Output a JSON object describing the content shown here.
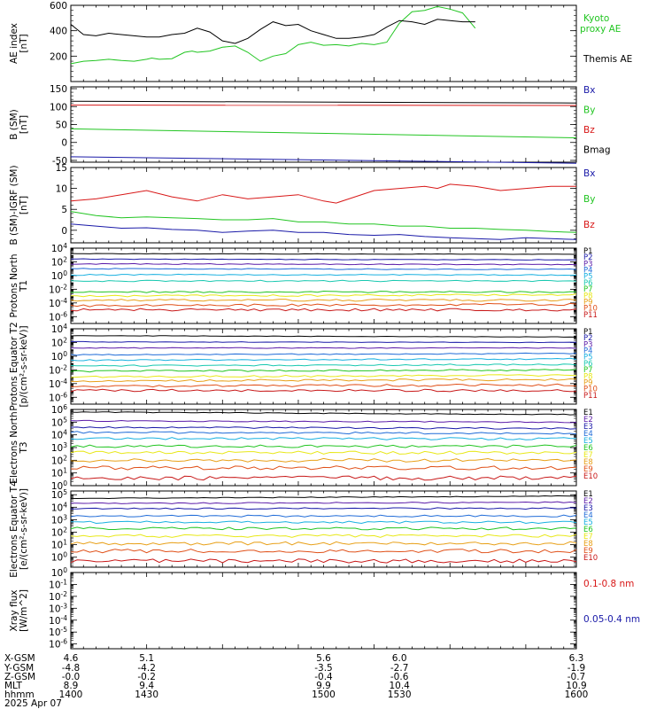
{
  "colors": {
    "black": "#000000",
    "blue": "#1a1aa8",
    "green": "#22c522",
    "red": "#d81818",
    "P": [
      "#000000",
      "#1a1aa8",
      "#5a1aa8",
      "#1f6bd8",
      "#18b0e0",
      "#18c8b0",
      "#22c522",
      "#e8e818",
      "#e8a018",
      "#e05018",
      "#c81818"
    ],
    "E": [
      "#000000",
      "#5a1aa8",
      "#1a1aa8",
      "#1f6bd8",
      "#18b0e0",
      "#22c522",
      "#e8e818",
      "#e8a018",
      "#e05018",
      "#c81818"
    ]
  },
  "chart_data": [
    {
      "type": "line",
      "ylabel": "AE index [nT]",
      "ylim": [
        0,
        600
      ],
      "yticks": [
        {
          "v": 600,
          "label": "600"
        },
        {
          "v": 400,
          "label": "400"
        },
        {
          "v": 200,
          "label": "200"
        }
      ],
      "legend_title": "",
      "series": [
        {
          "name": "Kyoto proxy AE",
          "color": "green",
          "x": [
            1400,
            1405,
            1410,
            1415,
            1420,
            1425,
            1430,
            1432,
            1435,
            1440,
            1445,
            1448,
            1450,
            1455,
            1460,
            1465,
            1470,
            1475,
            1480,
            1485,
            1490,
            1495,
            1500,
            1505,
            1510,
            1515,
            1520,
            1525,
            1530,
            1535,
            1540,
            1545,
            1550,
            1555,
            1560
          ],
          "y": [
            140,
            160,
            165,
            175,
            165,
            160,
            175,
            185,
            175,
            180,
            230,
            240,
            230,
            240,
            270,
            280,
            230,
            160,
            200,
            220,
            290,
            310,
            285,
            290,
            280,
            300,
            290,
            310,
            460,
            550,
            560,
            590,
            570,
            540,
            420
          ]
        },
        {
          "name": "Themis AE",
          "color": "black",
          "x": [
            1400,
            1405,
            1410,
            1415,
            1420,
            1425,
            1430,
            1435,
            1440,
            1445,
            1450,
            1455,
            1460,
            1465,
            1470,
            1475,
            1480,
            1485,
            1490,
            1495,
            1500,
            1505,
            1510,
            1515,
            1520,
            1525,
            1530,
            1535,
            1540,
            1545,
            1550,
            1555,
            1560
          ],
          "y": [
            450,
            370,
            360,
            380,
            370,
            360,
            350,
            350,
            370,
            380,
            420,
            390,
            320,
            300,
            340,
            410,
            470,
            440,
            450,
            400,
            370,
            340,
            340,
            350,
            370,
            430,
            480,
            470,
            450,
            490,
            480,
            470,
            470
          ]
        }
      ]
    },
    {
      "type": "line",
      "ylabel": "B (SM) [nT]",
      "ylim": [
        -55,
        155
      ],
      "yticks": [
        {
          "v": 150,
          "label": "150"
        },
        {
          "v": 100,
          "label": "100"
        },
        {
          "v": 50,
          "label": "50"
        },
        {
          "v": 0,
          "label": "0"
        },
        {
          "v": -50,
          "label": "-50"
        }
      ],
      "series": [
        {
          "name": "Bx",
          "color": "blue",
          "x": [
            1400,
            1600
          ],
          "y": [
            -40,
            -58
          ]
        },
        {
          "name": "By",
          "color": "green",
          "x": [
            1400,
            1600
          ],
          "y": [
            38,
            13
          ]
        },
        {
          "name": "Bz",
          "color": "red",
          "x": [
            1400,
            1600
          ],
          "y": [
            104,
            103
          ]
        },
        {
          "name": "Bmag",
          "color": "black",
          "x": [
            1400,
            1600
          ],
          "y": [
            115,
            110
          ]
        }
      ]
    },
    {
      "type": "line",
      "ylabel": "B (SM)-IGRF (SM) [nT]",
      "ylim": [
        -3,
        15
      ],
      "yticks": [
        {
          "v": 15,
          "label": "15"
        },
        {
          "v": 10,
          "label": "10"
        },
        {
          "v": 5,
          "label": "5"
        },
        {
          "v": 0,
          "label": "0"
        }
      ],
      "series": [
        {
          "name": "Bx",
          "color": "blue",
          "x": [
            1400,
            1410,
            1420,
            1430,
            1440,
            1450,
            1460,
            1470,
            1480,
            1490,
            1500,
            1510,
            1520,
            1530,
            1540,
            1550,
            1560,
            1570,
            1580,
            1590,
            1600
          ],
          "y": [
            1.5,
            1.0,
            0.5,
            0.6,
            0.2,
            0.0,
            -0.5,
            -0.2,
            0.0,
            -0.5,
            -0.5,
            -1.0,
            -1.2,
            -1.0,
            -1.5,
            -1.8,
            -2.0,
            -2.2,
            -1.8,
            -2.0,
            -2.2
          ]
        },
        {
          "name": "By",
          "color": "green",
          "x": [
            1400,
            1410,
            1420,
            1430,
            1440,
            1450,
            1460,
            1470,
            1480,
            1490,
            1500,
            1510,
            1520,
            1530,
            1540,
            1550,
            1560,
            1570,
            1580,
            1590,
            1600
          ],
          "y": [
            4.5,
            3.5,
            3.0,
            3.2,
            3.0,
            2.8,
            2.5,
            2.5,
            2.8,
            2.0,
            2.0,
            1.5,
            1.5,
            1.0,
            1.0,
            0.5,
            0.5,
            0.2,
            0.0,
            -0.3,
            -0.5
          ]
        },
        {
          "name": "Bz",
          "color": "red",
          "x": [
            1400,
            1410,
            1420,
            1430,
            1440,
            1450,
            1460,
            1470,
            1480,
            1490,
            1500,
            1505,
            1510,
            1520,
            1530,
            1540,
            1545,
            1550,
            1560,
            1570,
            1580,
            1590,
            1600
          ],
          "y": [
            7.0,
            7.5,
            8.5,
            9.5,
            8.0,
            7.0,
            8.5,
            7.5,
            8.0,
            8.5,
            7.0,
            6.5,
            7.5,
            9.5,
            10.0,
            10.5,
            10.0,
            11.0,
            10.5,
            9.5,
            10.0,
            10.5,
            10.5
          ]
        }
      ]
    },
    {
      "type": "line",
      "ylabel": "Protons North T1",
      "log": true,
      "ylim": [
        -7,
        4
      ],
      "yticks": [
        {
          "v": 4,
          "label": "10^4"
        },
        {
          "v": 2,
          "label": "10^2"
        },
        {
          "v": 0,
          "label": "10^0"
        },
        {
          "v": -2,
          "label": "10^-2"
        },
        {
          "v": -4,
          "label": "10^-4"
        },
        {
          "v": -6,
          "label": "10^-6"
        }
      ],
      "series": [
        {
          "name": "P1",
          "color": "P0",
          "y": [
            3.2,
            3.1
          ]
        },
        {
          "name": "P2",
          "color": "P1",
          "y": [
            2.4,
            2.3
          ]
        },
        {
          "name": "P3",
          "color": "P2",
          "y": [
            1.7,
            1.6
          ]
        },
        {
          "name": "P4",
          "color": "P3",
          "y": [
            1.0,
            0.9
          ]
        },
        {
          "name": "P5",
          "color": "P4",
          "y": [
            0.1,
            0.1
          ]
        },
        {
          "name": "P6",
          "color": "P5",
          "y": [
            -0.8,
            -0.8
          ]
        },
        {
          "name": "P7",
          "color": "P6",
          "y": [
            -2.4,
            -2.4
          ]
        },
        {
          "name": "P8",
          "color": "P7",
          "y": [
            -3.0,
            -2.8
          ]
        },
        {
          "name": "P9",
          "color": "P8",
          "y": [
            -3.6,
            -3.6
          ]
        },
        {
          "name": "P10",
          "color": "P9",
          "y": [
            -4.4,
            -4.2
          ]
        },
        {
          "name": "P11",
          "color": "P10",
          "y": [
            -5.0,
            -5.0
          ]
        }
      ]
    },
    {
      "type": "line",
      "ylabel": "Protons Equator T2 [p/(cm²-s-sr-keV)]",
      "log": true,
      "ylim": [
        -7,
        4
      ],
      "yticks": [
        {
          "v": 4,
          "label": "10^4"
        },
        {
          "v": 2,
          "label": "10^2"
        },
        {
          "v": 0,
          "label": "10^0"
        },
        {
          "v": -2,
          "label": "10^-2"
        },
        {
          "v": -4,
          "label": "10^-4"
        },
        {
          "v": -6,
          "label": "10^-6"
        }
      ],
      "series": [
        {
          "name": "P1",
          "color": "P0",
          "y": [
            3.0,
            2.8
          ]
        },
        {
          "name": "P2",
          "color": "P1",
          "y": [
            2.1,
            2.0
          ]
        },
        {
          "name": "P3",
          "color": "P2",
          "y": [
            1.2,
            1.2
          ]
        },
        {
          "name": "P4",
          "color": "P3",
          "y": [
            0.2,
            0.4
          ]
        },
        {
          "name": "P5",
          "color": "P4",
          "y": [
            -0.6,
            -0.4
          ]
        },
        {
          "name": "P6",
          "color": "P5",
          "y": [
            -1.4,
            -1.2
          ]
        },
        {
          "name": "P7",
          "color": "P6",
          "y": [
            -2.2,
            -2.0
          ]
        },
        {
          "name": "P8",
          "color": "P7",
          "y": [
            -3.0,
            -2.8
          ]
        },
        {
          "name": "P9",
          "color": "P8",
          "y": [
            -3.6,
            -3.4
          ]
        },
        {
          "name": "P10",
          "color": "P9",
          "y": [
            -4.4,
            -4.2
          ]
        },
        {
          "name": "P11",
          "color": "P10",
          "y": [
            -5.0,
            -5.0
          ]
        }
      ]
    },
    {
      "type": "line",
      "ylabel": "Electrons North T3",
      "log": true,
      "ylim": [
        0,
        6
      ],
      "yticks": [
        {
          "v": 6,
          "label": "10^6"
        },
        {
          "v": 5,
          "label": "10^5"
        },
        {
          "v": 4,
          "label": "10^4"
        },
        {
          "v": 3,
          "label": "10^3"
        },
        {
          "v": 2,
          "label": "10^2"
        },
        {
          "v": 1,
          "label": "10^1"
        },
        {
          "v": 0,
          "label": "10^0"
        }
      ],
      "series": [
        {
          "name": "E1",
          "color": "E0",
          "y": [
            5.8,
            5.6
          ]
        },
        {
          "name": "E2",
          "color": "E1",
          "y": [
            5.1,
            5.0
          ]
        },
        {
          "name": "E3",
          "color": "E2",
          "y": [
            4.6,
            4.5
          ]
        },
        {
          "name": "E4",
          "color": "E3",
          "y": [
            4.2,
            4.1
          ]
        },
        {
          "name": "E5",
          "color": "E4",
          "y": [
            3.7,
            3.7
          ]
        },
        {
          "name": "E6",
          "color": "E5",
          "y": [
            3.1,
            3.1
          ]
        },
        {
          "name": "E7",
          "color": "E6",
          "y": [
            2.6,
            2.6
          ]
        },
        {
          "name": "E8",
          "color": "E7",
          "y": [
            2.0,
            2.0
          ]
        },
        {
          "name": "E9",
          "color": "E8",
          "y": [
            1.4,
            1.4
          ]
        },
        {
          "name": "E10",
          "color": "E9",
          "y": [
            0.6,
            0.6
          ]
        }
      ]
    },
    {
      "type": "line",
      "ylabel": "Electrons Equator T4 [e/(cm²-s-sr-keV)]",
      "log": true,
      "ylim": [
        -0.8,
        5.3
      ],
      "yticks": [
        {
          "v": 5,
          "label": "10^5"
        },
        {
          "v": 4,
          "label": "10^4"
        },
        {
          "v": 3,
          "label": "10^3"
        },
        {
          "v": 2,
          "label": "10^2"
        },
        {
          "v": 1,
          "label": "10^1"
        },
        {
          "v": 0,
          "label": "10^0"
        }
      ],
      "series": [
        {
          "name": "E1",
          "color": "E0",
          "y": [
            4.7,
            4.9
          ]
        },
        {
          "name": "E2",
          "color": "E1",
          "y": [
            4.3,
            4.4
          ]
        },
        {
          "name": "E3",
          "color": "E2",
          "y": [
            3.9,
            3.9
          ]
        },
        {
          "name": "E4",
          "color": "E3",
          "y": [
            3.3,
            3.3
          ]
        },
        {
          "name": "E5",
          "color": "E4",
          "y": [
            2.8,
            2.8
          ]
        },
        {
          "name": "E6",
          "color": "E5",
          "y": [
            2.3,
            2.3
          ]
        },
        {
          "name": "E7",
          "color": "E6",
          "y": [
            1.7,
            1.7
          ]
        },
        {
          "name": "E8",
          "color": "E7",
          "y": [
            1.1,
            1.1
          ]
        },
        {
          "name": "E9",
          "color": "E8",
          "y": [
            0.5,
            0.5
          ]
        },
        {
          "name": "E10",
          "color": "E9",
          "y": [
            -0.3,
            -0.3
          ]
        }
      ]
    },
    {
      "type": "line",
      "ylabel": "Xray flux [W/m^2]",
      "log": true,
      "ylim": [
        -6.4,
        0
      ],
      "yticks": [
        {
          "v": 0,
          "label": "10^0"
        },
        {
          "v": -1,
          "label": "10^-1"
        },
        {
          "v": -2,
          "label": "10^-2"
        },
        {
          "v": -3,
          "label": "10^-3"
        },
        {
          "v": -4,
          "label": "10^-4"
        },
        {
          "v": -5,
          "label": "10^-5"
        },
        {
          "v": -6,
          "label": "10^-6"
        }
      ],
      "series": [
        {
          "name": "0.1-0.8 nm",
          "color": "red",
          "y": []
        },
        {
          "name": "0.05-0.4 nm",
          "color": "blue",
          "y": []
        }
      ]
    }
  ],
  "ephemeris": {
    "row_labels": [
      "X-GSM",
      "Y-GSM",
      "Z-GSM",
      "MLT",
      "hhmm"
    ],
    "columns": [
      {
        "t": 1400,
        "values": [
          "4.6",
          "-4.8",
          "-0.0",
          "8.9",
          "1400"
        ]
      },
      {
        "t": 1430,
        "values": [
          "5.1",
          "-4.2",
          "-0.2",
          "9.4",
          "1430"
        ]
      },
      {
        "t": 1500,
        "values": [
          "5.6",
          "-3.5",
          "-0.4",
          "9.9",
          "1500"
        ]
      },
      {
        "t": 1530,
        "values": [
          "6.0",
          "-2.7",
          "-0.6",
          "10.4",
          "1530"
        ]
      },
      {
        "t": 1600,
        "values": [
          "6.3",
          "-1.9",
          "-0.7",
          "10.9",
          "1600"
        ]
      }
    ],
    "date": "2025 Apr 07"
  },
  "legend_labels": {
    "kyoto": [
      "Kyoto",
      "proxy AE"
    ],
    "themis": "Themis AE"
  }
}
